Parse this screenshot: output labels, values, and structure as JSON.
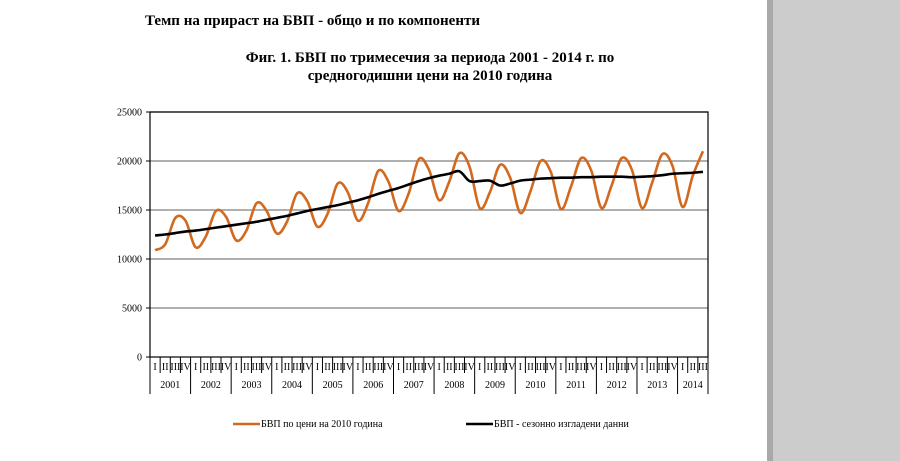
{
  "page": {
    "section_title": "Темп на прираст на БВП - общо и по компоненти",
    "figure_title_line1": "Фиг. 1. БВП по тримесечия за периода 2001 - 2014 г. по",
    "figure_title_line2": "средногодишни цени на 2010 година"
  },
  "colors": {
    "orange": "#d2691e",
    "black": "#000000",
    "grid": "#808080",
    "viewer_bg": "#cccccc"
  },
  "chart_data": {
    "type": "line",
    "title": "Фиг. 1. БВП по тримесечия за периода 2001 - 2014 г. по средногодишни цени на 2010 година",
    "xlabel": "",
    "ylabel": "",
    "ylim": [
      0,
      25000
    ],
    "yticks": [
      0,
      5000,
      10000,
      15000,
      20000,
      25000
    ],
    "grid": true,
    "legend_position": "bottom",
    "years": [
      "2001",
      "2002",
      "2003",
      "2004",
      "2005",
      "2006",
      "2007",
      "2008",
      "2009",
      "2010",
      "2011",
      "2012",
      "2013",
      "2014"
    ],
    "quarter_labels": [
      "I",
      "II",
      "III",
      "IV"
    ],
    "quarters_per_year": [
      4,
      4,
      4,
      4,
      4,
      4,
      4,
      4,
      4,
      4,
      4,
      4,
      4,
      3
    ],
    "series": [
      {
        "name": "БВП по цени на 2010 година",
        "color": "#d2691e",
        "values": [
          10900,
          11500,
          14200,
          13900,
          11200,
          12300,
          14900,
          14300,
          11900,
          12900,
          15700,
          14900,
          12600,
          13800,
          16700,
          15900,
          13300,
          14600,
          17700,
          16800,
          13900,
          15700,
          19000,
          17900,
          14900,
          16700,
          20200,
          19100,
          16000,
          17900,
          20800,
          19400,
          15200,
          16800,
          19600,
          18300,
          14700,
          16900,
          20000,
          18900,
          15100,
          17400,
          20300,
          19000,
          15200,
          17500,
          20300,
          19100,
          15200,
          17800,
          20700,
          19500,
          15300,
          18500,
          21000
        ]
      },
      {
        "name": "БВП - сезонно изгладени данни",
        "color": "#000000",
        "values": [
          12400,
          12500,
          12650,
          12800,
          12900,
          13050,
          13200,
          13350,
          13500,
          13650,
          13800,
          14000,
          14200,
          14400,
          14650,
          14900,
          15100,
          15300,
          15500,
          15750,
          16000,
          16300,
          16650,
          16950,
          17250,
          17600,
          17950,
          18250,
          18500,
          18700,
          18950,
          17950,
          17950,
          18000,
          17500,
          17700,
          18000,
          18100,
          18200,
          18250,
          18300,
          18300,
          18350,
          18350,
          18400,
          18400,
          18400,
          18350,
          18400,
          18450,
          18550,
          18700,
          18750,
          18800,
          18900
        ]
      }
    ]
  },
  "legend": {
    "items": [
      {
        "label": "БВП по цени на 2010 година",
        "color": "#d2691e"
      },
      {
        "label": "БВП - сезонно изгладени данни",
        "color": "#000000"
      }
    ]
  }
}
